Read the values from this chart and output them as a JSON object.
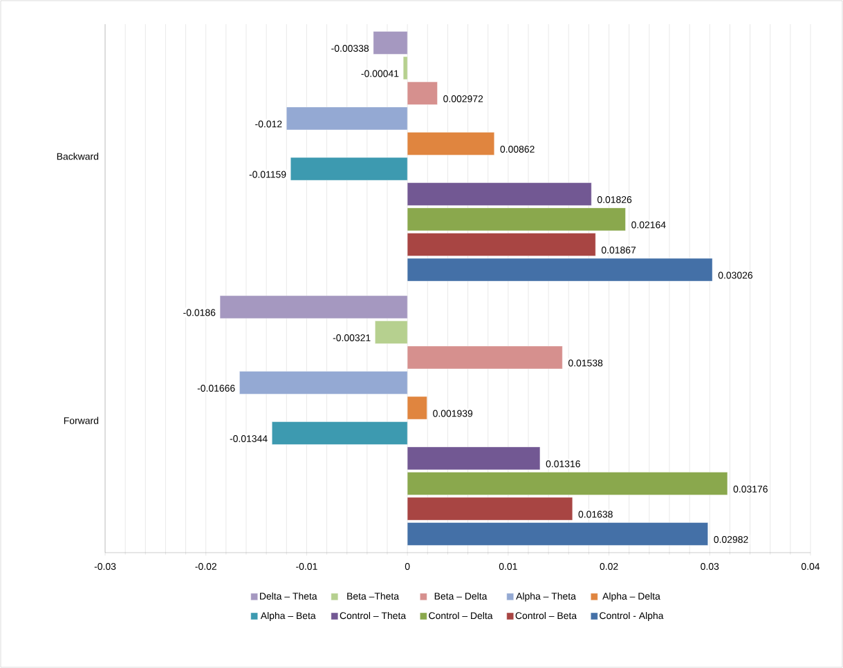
{
  "chart_data": {
    "type": "bar",
    "orientation": "horizontal",
    "categories": [
      "Backward",
      "Forward"
    ],
    "series": [
      {
        "name": "Delta – Theta",
        "color": "#a598c0",
        "values": [
          -0.00338,
          -0.0186
        ],
        "value_labels": [
          "-0.00338",
          "-0.0186"
        ]
      },
      {
        "name": "Beta –Theta",
        "color": "#b6d08f",
        "values": [
          -0.00041,
          -0.00321
        ],
        "value_labels": [
          "-0.00041",
          "-0.00321"
        ]
      },
      {
        "name": "Beta – Delta",
        "color": "#d6908e",
        "values": [
          0.002972,
          0.01538
        ],
        "value_labels": [
          "0.002972",
          "0.01538"
        ]
      },
      {
        "name": "Alpha – Theta",
        "color": "#94a9d3",
        "values": [
          -0.012,
          -0.01666
        ],
        "value_labels": [
          "-0.012",
          "-0.01666"
        ]
      },
      {
        "name": "Alpha – Delta",
        "color": "#e0853f",
        "values": [
          0.00862,
          0.001939
        ],
        "value_labels": [
          "0.00862",
          "0.001939"
        ]
      },
      {
        "name": "Alpha – Beta",
        "color": "#3d9ab0",
        "values": [
          -0.01159,
          -0.01344
        ],
        "value_labels": [
          "-0.01159",
          "-0.01344"
        ]
      },
      {
        "name": "Control – Theta",
        "color": "#725893",
        "values": [
          0.01826,
          0.01316
        ],
        "value_labels": [
          "0.01826",
          "0.01316"
        ]
      },
      {
        "name": "Control – Delta",
        "color": "#8aa84d",
        "values": [
          0.02164,
          0.03176
        ],
        "value_labels": [
          "0.02164",
          "0.03176"
        ]
      },
      {
        "name": "Control – Beta",
        "color": "#a84543",
        "values": [
          0.01867,
          0.01638
        ],
        "value_labels": [
          "0.01867",
          "0.01638"
        ]
      },
      {
        "name": "Control - Alpha",
        "color": "#4470a7",
        "values": [
          0.03026,
          0.02982
        ],
        "value_labels": [
          "0.03026",
          "0.02982"
        ]
      }
    ],
    "xlim": [
      -0.03,
      0.04
    ],
    "xticks": [
      -0.03,
      -0.02,
      -0.01,
      0,
      0.01,
      0.02,
      0.03,
      0.04
    ],
    "grid": "x",
    "legend": "bottom"
  }
}
